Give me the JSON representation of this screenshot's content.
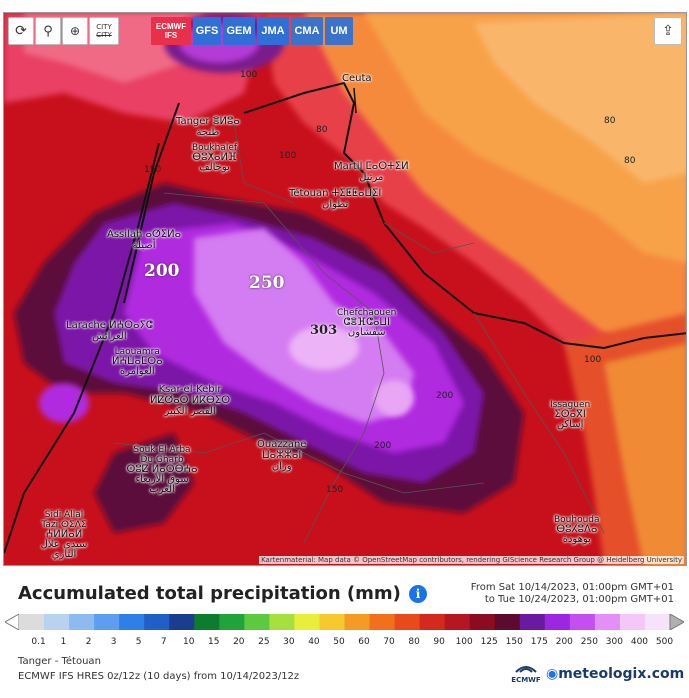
{
  "toolbar": {
    "buttons": [
      {
        "name": "refresh-button",
        "icon": "refresh-icon"
      },
      {
        "name": "location-button",
        "icon": "location-pin-icon"
      },
      {
        "name": "zoom-button",
        "icon": "zoom-icon"
      },
      {
        "name": "city-toggle-button",
        "label_top": "CITY",
        "label_bottom": "CITY"
      }
    ],
    "models": [
      {
        "label": "ECMWF IFS",
        "line1": "ECMWF",
        "line2": "IFS",
        "color": "#e8304a",
        "active": true
      },
      {
        "label": "GFS",
        "color": "#2f6fd6",
        "active": false
      },
      {
        "label": "GEM",
        "color": "#2f6fd6",
        "active": false
      },
      {
        "label": "JMA",
        "color": "#2f6fd6",
        "active": false
      },
      {
        "label": "CMA",
        "color": "#3a73c9",
        "active": false
      },
      {
        "label": "UM",
        "color": "#3a73c9",
        "active": false
      }
    ],
    "share_icon": "share-icon"
  },
  "map": {
    "cities": [
      {
        "id": "tanger",
        "latin": "Tanger ⴻⵍⵓⴰ",
        "arabic": "طنجة"
      },
      {
        "id": "ceuta",
        "latin": "Ceuta",
        "arabic": ""
      },
      {
        "id": "boukhalef",
        "latin": "Boukhalef",
        "tif": "ⴱⵓⵅⴰⵍⴼ",
        "arabic": "بوخالف"
      },
      {
        "id": "martil",
        "latin": "Martil ⵎⴰⵔⵜⵉⵍ",
        "arabic": "مرتيل"
      },
      {
        "id": "tetouan",
        "latin": "Tétouan ⵜⵉⵟⵟⴰⵡⵉⵏ",
        "arabic": "تطوان"
      },
      {
        "id": "assilah",
        "latin": "Assilah ⴰⵚⵉⵍⴰ",
        "arabic": "أصيلة"
      },
      {
        "id": "larache",
        "latin": "Larache ⵍⵄⵔⴰⵢⵛ",
        "arabic": "العرائش"
      },
      {
        "id": "chefchaouen",
        "latin": "Chefchaouen",
        "tif": "ⵛⴻⴼⵛⴰⵡⵏ",
        "arabic": "شفشاون"
      },
      {
        "id": "laouamra",
        "latin": "Laouamra",
        "tif": "ⵍⵄⵡⴰⵎⵔⴰ",
        "arabic": "العوامرة"
      },
      {
        "id": "ksar",
        "latin": "Ksar-el-Kebir",
        "tif": "ⵍⵇⵚⴰⵔ ⵍⴽⴱⵉⵔ",
        "arabic": "القصر الكبير"
      },
      {
        "id": "issaguen",
        "latin": "Issaguen",
        "tif": "ⵉⵙⴰⴳⵏ",
        "arabic": "إساكن"
      },
      {
        "id": "ouazzane",
        "latin": "Ouazzane",
        "tif": "ⵡⴰⵣⵣⴰⵏ",
        "arabic": "وزان"
      },
      {
        "id": "souk",
        "latin": "Souk El Arba Du Gharb",
        "tif": "ⵙⵓⵇ ⵍⴰⵔⴱⵄⴰ",
        "arabic": "سوق الأربعاء الغرب"
      },
      {
        "id": "bouhouda",
        "latin": "Bouhouda",
        "tif": "ⴱⵓⵃⵓⴷⴰ",
        "arabic": "بوهودة"
      },
      {
        "id": "sidi",
        "latin": "Sidi Allal Tazi ⵙⵉⴷⵉ",
        "tif": "ⵄⵍⵍⴰⵍ",
        "arabic": "سيدي علال التازي"
      }
    ],
    "contour_labels": [
      "80",
      "80",
      "80",
      "100",
      "100",
      "100",
      "150",
      "150",
      "200",
      "200"
    ],
    "big_labels": [
      "200",
      "250",
      "303"
    ],
    "attribution": "Kartenmaterial: Map data © OpenStreetMap contributors, rendering GIScience Research Group @ Heidelberg University"
  },
  "legend": {
    "title": "Accumulated total precipitation (mm)",
    "from": "From Sat 10/14/2023, 01:00pm GMT+01",
    "to": "to Tue 10/24/2023, 01:00pm GMT+01",
    "values": [
      "0.1",
      "1",
      "2",
      "3",
      "5",
      "7",
      "10",
      "15",
      "20",
      "25",
      "30",
      "40",
      "50",
      "60",
      "70",
      "80",
      "90",
      "100",
      "125",
      "150",
      "175",
      "200",
      "250",
      "300",
      "400",
      "500"
    ],
    "colors": [
      "#dcdcdc",
      "#b9d2f2",
      "#8fbaf0",
      "#5d9ef0",
      "#2f7fe8",
      "#1f5fc7",
      "#1b3d8f",
      "#0c7c2f",
      "#1fa33a",
      "#5cc940",
      "#a6df3e",
      "#e8ee3a",
      "#f6c92e",
      "#f59a22",
      "#f2701c",
      "#e84a1a",
      "#d42a1e",
      "#b41622",
      "#8c0b1e",
      "#5c0a2e",
      "#6a1aa0",
      "#9b27e0",
      "#c44ef2",
      "#e28ff7",
      "#f3c8f9",
      "#f7e3f9"
    ]
  },
  "meta": {
    "location": "Tanger - Tétouan",
    "run": "ECMWF IFS HRES 0z/12z (10 days) from 10/14/2023/12z",
    "brand": "meteologix.com",
    "ecmwf_logo": "ECMWF"
  }
}
